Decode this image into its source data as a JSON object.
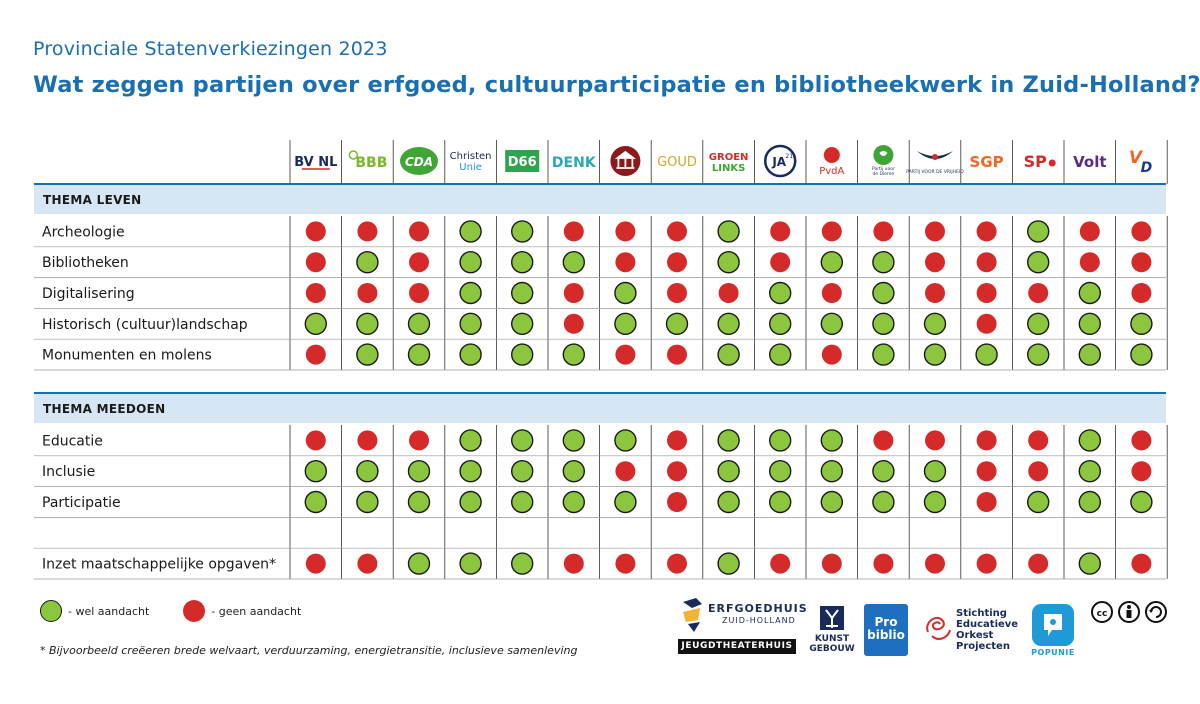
{
  "header": {
    "subtitle": "Provinciale Statenverkiezingen 2023",
    "title": "Wat zeggen partijen over erfgoed, cultuurparticipatie en bibliotheekwerk in Zuid-Holland?"
  },
  "colors": {
    "accent": "#1a6fb3",
    "section_band": "#d7e6f4",
    "section_line": "#1a6fb3",
    "yes": "#8cc63f",
    "no": "#d52a2a"
  },
  "chart_data": {
    "type": "table",
    "parties": [
      "BVNL",
      "BBB",
      "CDA",
      "ChristenUnie",
      "D66",
      "DENK",
      "Forum voor Democratie",
      "GOUD",
      "GroenLinks",
      "JA21",
      "PvdA",
      "Partij voor de Dieren",
      "Partij voor de Vrijheid",
      "SGP",
      "SP",
      "Volt",
      "VVD"
    ],
    "party_labels": [
      "BV NL",
      "BBB",
      "CDA",
      "Christen Unie",
      "D66",
      "DENK",
      "",
      "GOUD",
      "GROEN LINKS",
      "JA21",
      "PvdA",
      "Partij voor de Dieren",
      "PARTIJ VOOR DE VRIJHEID",
      "SGP",
      "SP",
      "Volt",
      "VVD"
    ],
    "party_icons": [
      "bvnl-logo",
      "bbb-logo",
      "cda-logo",
      "christenunie-logo",
      "d66-logo",
      "denk-logo",
      "fvd-logo",
      "goud-logo",
      "groenlinks-logo",
      "ja21-logo",
      "pvda-logo",
      "pvdd-logo",
      "pvv-logo",
      "sgp-logo",
      "sp-logo",
      "volt-logo",
      "vvd-logo"
    ],
    "legend": {
      "yes": "- wel aandacht",
      "no": "- geen aandacht"
    },
    "sections": [
      {
        "title": "THEMA LEVEN",
        "rows": [
          {
            "label": "Archeologie",
            "values": [
              0,
              0,
              0,
              1,
              1,
              0,
              0,
              0,
              1,
              0,
              0,
              0,
              0,
              0,
              1,
              0,
              0
            ]
          },
          {
            "label": "Bibliotheken",
            "values": [
              0,
              1,
              0,
              1,
              1,
              1,
              0,
              0,
              1,
              0,
              1,
              1,
              0,
              0,
              1,
              0,
              0
            ]
          },
          {
            "label": "Digitalisering",
            "values": [
              0,
              0,
              0,
              1,
              1,
              0,
              1,
              0,
              0,
              1,
              0,
              1,
              0,
              0,
              0,
              1,
              0
            ]
          },
          {
            "label": "Historisch (cultuur)landschap",
            "values": [
              1,
              1,
              1,
              1,
              1,
              0,
              1,
              1,
              1,
              1,
              1,
              1,
              1,
              0,
              1,
              1,
              1
            ]
          },
          {
            "label": "Monumenten en molens",
            "values": [
              0,
              1,
              1,
              1,
              1,
              1,
              0,
              0,
              1,
              1,
              0,
              1,
              1,
              1,
              1,
              1,
              1
            ]
          }
        ]
      },
      {
        "title": "THEMA MEEDOEN",
        "rows": [
          {
            "label": "Educatie",
            "values": [
              0,
              0,
              0,
              1,
              1,
              1,
              1,
              0,
              1,
              1,
              1,
              0,
              0,
              0,
              0,
              1,
              0
            ]
          },
          {
            "label": "Inclusie",
            "values": [
              1,
              1,
              1,
              1,
              1,
              1,
              0,
              0,
              1,
              1,
              1,
              1,
              1,
              0,
              0,
              1,
              0
            ]
          },
          {
            "label": "Participatie",
            "values": [
              1,
              1,
              1,
              1,
              1,
              1,
              1,
              0,
              1,
              1,
              1,
              1,
              1,
              0,
              1,
              1,
              1
            ]
          },
          {
            "label": "",
            "values": null
          },
          {
            "label": "Inzet maatschappelijke opgaven*",
            "values": [
              0,
              0,
              1,
              1,
              1,
              0,
              0,
              0,
              1,
              0,
              0,
              0,
              0,
              0,
              0,
              1,
              0
            ]
          }
        ]
      }
    ]
  },
  "footnote": "* Bijvoorbeeld creëeren brede welvaart, verduurzaming, energietransitie, inclusieve samenleving",
  "partners": {
    "erfgoedhuis_name": "ERFGOEDHUIS",
    "erfgoedhuis_sub": "ZUID-HOLLAND",
    "jeugdtheaterhuis": "JEUGDTHEATERHUIS",
    "kunstgebouw": [
      "KUNST",
      "GEBOUW"
    ],
    "probiblio": [
      "Pro",
      "biblio"
    ],
    "seop": [
      "Stichting",
      "Educatieve",
      "Orkest",
      "Projecten"
    ],
    "popunie": "POPUNIE"
  },
  "license": [
    "cc-icon",
    "by-icon",
    "sa-icon"
  ]
}
